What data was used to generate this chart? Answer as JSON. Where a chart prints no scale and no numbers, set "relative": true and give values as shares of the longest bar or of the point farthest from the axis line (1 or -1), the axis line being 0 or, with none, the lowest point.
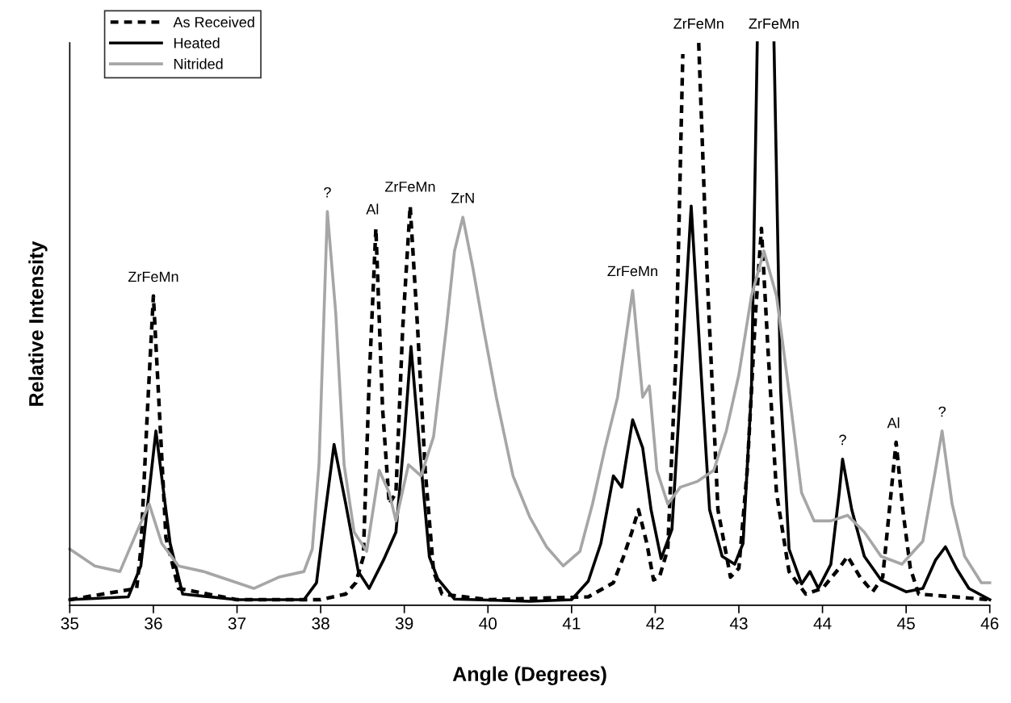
{
  "chart_data": {
    "type": "line",
    "relative": true,
    "xlabel": "Angle (Degrees)",
    "ylabel": "Relative Intensity",
    "xlim": [
      35,
      46
    ],
    "xticks": [
      35,
      36,
      37,
      38,
      39,
      40,
      41,
      42,
      43,
      44,
      45,
      46
    ],
    "grid": false,
    "legend": "top left",
    "marker": "none",
    "tick_labels": "x",
    "series": [
      {
        "name": "As Received",
        "color": "#000000",
        "line_style": "dashed",
        "x": [
          35,
          35.8,
          35.85,
          35.93,
          36.0,
          36.07,
          36.15,
          36.3,
          37,
          38.0,
          38.3,
          38.42,
          38.51,
          38.58,
          38.66,
          38.74,
          38.82,
          38.9,
          38.98,
          39.07,
          39.16,
          39.25,
          39.35,
          39.45,
          40,
          41.2,
          41.5,
          41.62,
          41.72,
          41.8,
          41.9,
          41.98,
          42.05,
          42.15,
          42.25,
          42.33,
          42.43,
          42.52,
          42.62,
          42.75,
          42.9,
          43.0,
          43.1,
          43.2,
          43.27,
          43.35,
          43.45,
          43.6,
          43.8,
          44.0,
          44.2,
          44.3,
          44.45,
          44.6,
          44.72,
          44.8,
          44.88,
          44.96,
          45.05,
          45.15,
          46
        ],
        "values": [
          0.01,
          0.03,
          0.1,
          0.35,
          0.55,
          0.35,
          0.12,
          0.03,
          0.01,
          0.01,
          0.02,
          0.04,
          0.086,
          0.4,
          0.67,
          0.35,
          0.18,
          0.2,
          0.49,
          0.71,
          0.49,
          0.24,
          0.06,
          0.02,
          0.01,
          0.015,
          0.04,
          0.086,
          0.13,
          0.17,
          0.11,
          0.045,
          0.05,
          0.1,
          0.45,
          0.98,
          null,
          1.0,
          0.59,
          0.17,
          0.05,
          0.066,
          0.24,
          0.52,
          0.67,
          0.45,
          0.2,
          0.06,
          0.02,
          0.03,
          0.066,
          0.087,
          0.05,
          0.024,
          0.05,
          0.17,
          0.29,
          0.17,
          0.066,
          0.02,
          0.01
        ]
      },
      {
        "name": "Heated",
        "color": "#000000",
        "line_style": "solid",
        "x": [
          35,
          35.7,
          35.85,
          36.03,
          36.2,
          36.35,
          37,
          37.8,
          37.95,
          38.05,
          38.16,
          38.3,
          38.45,
          38.58,
          38.75,
          38.9,
          39.0,
          39.08,
          39.2,
          39.3,
          39.4,
          39.6,
          40.5,
          41.0,
          41.2,
          41.35,
          41.5,
          41.6,
          41.73,
          41.85,
          41.95,
          42.07,
          42.2,
          42.3,
          42.43,
          42.55,
          42.65,
          42.8,
          42.95,
          43.05,
          43.15,
          43.22,
          43.32,
          43.42,
          43.5,
          43.6,
          43.75,
          43.85,
          43.95,
          44.1,
          44.2,
          44.24,
          44.35,
          44.5,
          44.7,
          45.0,
          45.2,
          45.35,
          45.47,
          45.6,
          45.75,
          46.0
        ],
        "values": [
          0.01,
          0.015,
          0.07,
          0.31,
          0.11,
          0.02,
          0.01,
          0.01,
          0.04,
          0.16,
          0.286,
          0.18,
          0.06,
          0.03,
          0.08,
          0.13,
          0.3,
          0.46,
          0.25,
          0.086,
          0.047,
          0.011,
          0.007,
          0.01,
          0.043,
          0.11,
          0.23,
          0.21,
          0.33,
          0.28,
          0.17,
          0.083,
          0.135,
          0.38,
          0.71,
          0.41,
          0.17,
          0.087,
          0.073,
          0.11,
          0.38,
          1.0,
          null,
          1.0,
          0.38,
          0.1,
          0.038,
          0.06,
          0.03,
          0.073,
          0.2,
          0.26,
          0.17,
          0.087,
          0.045,
          0.024,
          0.03,
          0.08,
          0.104,
          0.066,
          0.03,
          0.01
        ]
      },
      {
        "name": "Nitrided",
        "color": "#a6a6a6",
        "line_style": "solid",
        "x": [
          35,
          35.3,
          35.6,
          35.8,
          35.95,
          36.1,
          36.3,
          36.6,
          37.0,
          37.2,
          37.5,
          37.8,
          37.9,
          37.98,
          38.08,
          38.18,
          38.28,
          38.4,
          38.55,
          38.7,
          38.82,
          38.9,
          39.05,
          39.2,
          39.35,
          39.5,
          39.6,
          39.7,
          39.82,
          39.95,
          40.1,
          40.3,
          40.5,
          40.7,
          40.9,
          41.1,
          41.25,
          41.4,
          41.55,
          41.73,
          41.85,
          41.93,
          42.02,
          42.15,
          42.3,
          42.5,
          42.7,
          42.85,
          43.0,
          43.15,
          43.3,
          43.45,
          43.6,
          43.75,
          43.9,
          44.1,
          44.3,
          44.5,
          44.7,
          44.95,
          45.2,
          45.35,
          45.43,
          45.55,
          45.7,
          45.9,
          46.0
        ],
        "values": [
          0.1,
          0.07,
          0.06,
          0.13,
          0.18,
          0.11,
          0.07,
          0.06,
          0.04,
          0.03,
          0.05,
          0.06,
          0.1,
          0.25,
          0.7,
          0.52,
          0.25,
          0.13,
          0.096,
          0.24,
          0.2,
          0.15,
          0.25,
          0.23,
          0.3,
          0.49,
          0.63,
          0.69,
          0.6,
          0.49,
          0.37,
          0.23,
          0.157,
          0.104,
          0.07,
          0.096,
          0.18,
          0.28,
          0.37,
          0.56,
          0.37,
          0.39,
          0.24,
          0.18,
          0.21,
          0.22,
          0.24,
          0.31,
          0.41,
          0.55,
          0.63,
          0.55,
          0.38,
          0.2,
          0.15,
          0.15,
          0.16,
          0.13,
          0.087,
          0.073,
          0.114,
          0.24,
          0.31,
          0.18,
          0.087,
          0.04,
          0.04
        ]
      }
    ],
    "annotations": [
      {
        "text": "ZrFeMn",
        "x": 36.0,
        "y": 0.55
      },
      {
        "text": "?",
        "x": 38.08,
        "y": 0.7
      },
      {
        "text": "Al",
        "x": 38.62,
        "y": 0.67
      },
      {
        "text": "ZrFeMn",
        "x": 39.07,
        "y": 0.71
      },
      {
        "text": "ZrN",
        "x": 39.7,
        "y": 0.69
      },
      {
        "text": "ZrFeMn",
        "x": 41.73,
        "y": 0.56
      },
      {
        "text": "ZrFeMn",
        "x": 42.52,
        "y": 1.0
      },
      {
        "text": "ZrFeMn",
        "x": 43.42,
        "y": 1.0
      },
      {
        "text": "?",
        "x": 44.24,
        "y": 0.26
      },
      {
        "text": "Al",
        "x": 44.85,
        "y": 0.29
      },
      {
        "text": "?",
        "x": 45.43,
        "y": 0.31
      }
    ]
  }
}
